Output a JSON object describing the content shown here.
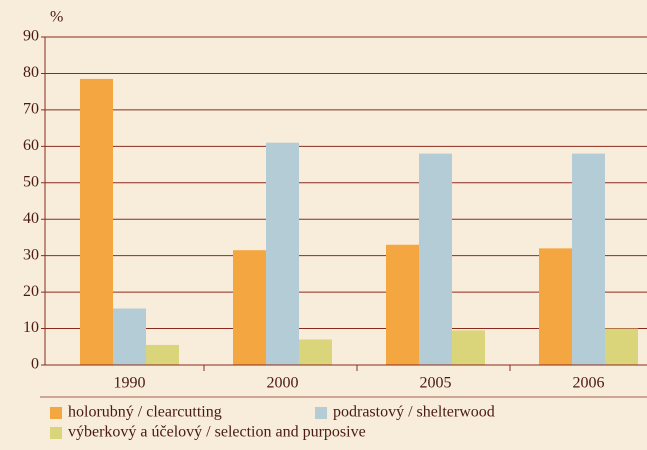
{
  "chart_data": {
    "type": "bar",
    "ylabel": "%",
    "categories": [
      "1990",
      "2000",
      "2005",
      "2006"
    ],
    "series": [
      {
        "name": "holorubný / clearcutting",
        "color": "#f4a640",
        "values": [
          78.5,
          31.5,
          33,
          32
        ]
      },
      {
        "name": "podrastový / shelterwood",
        "color": "#b4ccd6",
        "values": [
          15.5,
          61,
          58,
          58
        ]
      },
      {
        "name": "výberkový a účelový / selection and purposive",
        "color": "#dad47a",
        "values": [
          5.5,
          7,
          9.5,
          10
        ]
      }
    ],
    "ylim": [
      0,
      90
    ],
    "yticks": [
      0,
      10,
      20,
      30,
      40,
      50,
      60,
      70,
      80,
      90
    ],
    "grid": true,
    "legend": "bottom"
  }
}
